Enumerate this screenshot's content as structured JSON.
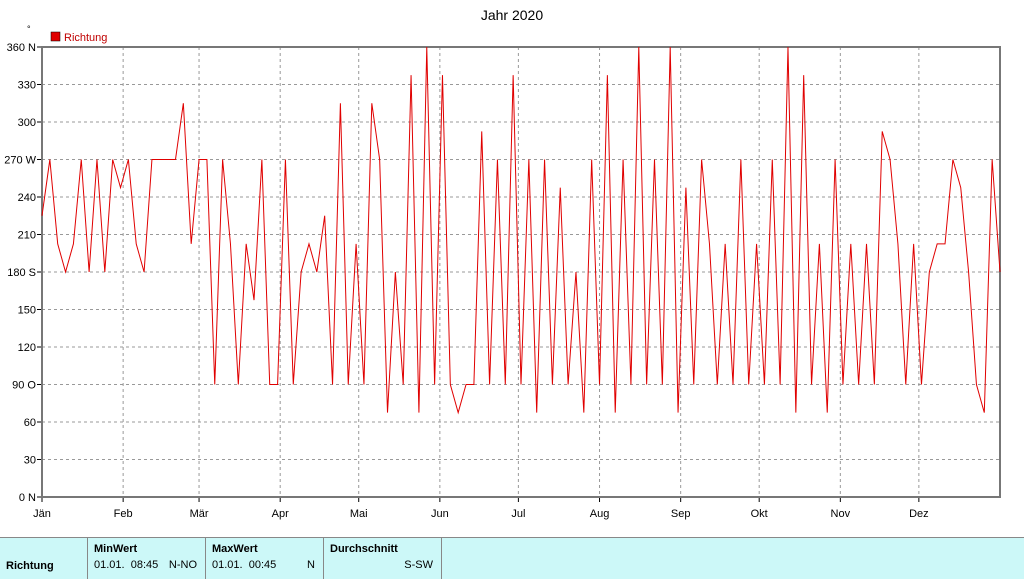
{
  "chart_data": {
    "type": "line",
    "title": "Jahr 2020",
    "y_unit": "°",
    "xlim": [
      0,
      366
    ],
    "xticks": [
      {
        "value": 0,
        "label": "Jän"
      },
      {
        "value": 31,
        "label": "Feb"
      },
      {
        "value": 60,
        "label": "Mär"
      },
      {
        "value": 91,
        "label": "Apr"
      },
      {
        "value": 121,
        "label": "Mai"
      },
      {
        "value": 152,
        "label": "Jun"
      },
      {
        "value": 182,
        "label": "Jul"
      },
      {
        "value": 213,
        "label": "Aug"
      },
      {
        "value": 244,
        "label": "Sep"
      },
      {
        "value": 274,
        "label": "Okt"
      },
      {
        "value": 305,
        "label": "Nov"
      },
      {
        "value": 335,
        "label": "Dez"
      }
    ],
    "ylim": [
      0,
      360
    ],
    "yticks": [
      {
        "value": 0,
        "label": "0 N"
      },
      30,
      60,
      {
        "value": 90,
        "label": "90 O"
      },
      120,
      150,
      {
        "value": 180,
        "label": "180 S"
      },
      210,
      240,
      {
        "value": 270,
        "label": "270 W"
      },
      300,
      330,
      {
        "value": 360,
        "label": "360 N"
      }
    ],
    "grid": true,
    "x": [
      0,
      3,
      6,
      9,
      12,
      15,
      18,
      21,
      24,
      27,
      30,
      33,
      36,
      39,
      42,
      45,
      48,
      51,
      54,
      57,
      60,
      63,
      66,
      69,
      72,
      75,
      78,
      81,
      84,
      87,
      90,
      93,
      96,
      99,
      102,
      105,
      108,
      111,
      114,
      117,
      120,
      123,
      126,
      129,
      132,
      135,
      138,
      141,
      144,
      147,
      150,
      153,
      156,
      159,
      162,
      165,
      168,
      171,
      174,
      177,
      180,
      183,
      186,
      189,
      192,
      195,
      198,
      201,
      204,
      207,
      210,
      213,
      216,
      219,
      222,
      225,
      228,
      231,
      234,
      237,
      240,
      243,
      246,
      249,
      252,
      255,
      258,
      261,
      264,
      267,
      270,
      273,
      276,
      279,
      282,
      285,
      288,
      291,
      294,
      297,
      300,
      303,
      306,
      309,
      312,
      315,
      318,
      321,
      324,
      327,
      330,
      333,
      336,
      339,
      342,
      345,
      348,
      351,
      354,
      357,
      360,
      363,
      366
    ],
    "series": [
      {
        "name": "Richtung",
        "color": "#e00000",
        "values": [
          225,
          270,
          202.5,
          180,
          202.5,
          270,
          180,
          270,
          180,
          270,
          247.5,
          270,
          202.5,
          180,
          270,
          270,
          270,
          270,
          315,
          202.5,
          270,
          270,
          90,
          270,
          202.5,
          90,
          202.5,
          157.5,
          270,
          90,
          90,
          270,
          90,
          180,
          202.5,
          180,
          225,
          90,
          315,
          90,
          202.5,
          90,
          315,
          270,
          67.5,
          180,
          90,
          337.5,
          67.5,
          360,
          90,
          337.5,
          90,
          67.5,
          90,
          90,
          292.5,
          90,
          270,
          90,
          337.5,
          90,
          270,
          67.5,
          270,
          90,
          247.5,
          90,
          180,
          67.5,
          270,
          90,
          337.5,
          67.5,
          270,
          90,
          360,
          90,
          270,
          90,
          360,
          67.5,
          247.5,
          90,
          270,
          202.5,
          90,
          202.5,
          90,
          270,
          90,
          202.5,
          90,
          270,
          90,
          360,
          67.5,
          337.5,
          90,
          202.5,
          67.5,
          270,
          90,
          202.5,
          90,
          202.5,
          90,
          292.5,
          270,
          202.5,
          90,
          202.5,
          90,
          180,
          202.5,
          202.5,
          270,
          247.5,
          180,
          90,
          67.5,
          270,
          180
        ]
      }
    ]
  },
  "panel": {
    "row_label": "Richtung",
    "columns": [
      {
        "header": "MinWert",
        "date": "01.01.",
        "time": "08:45",
        "value": "N-NO"
      },
      {
        "header": "MaxWert",
        "date": "01.01.",
        "time": "00:45",
        "value": "N"
      },
      {
        "header": "Durchschnitt",
        "value": "S-SW"
      }
    ]
  }
}
